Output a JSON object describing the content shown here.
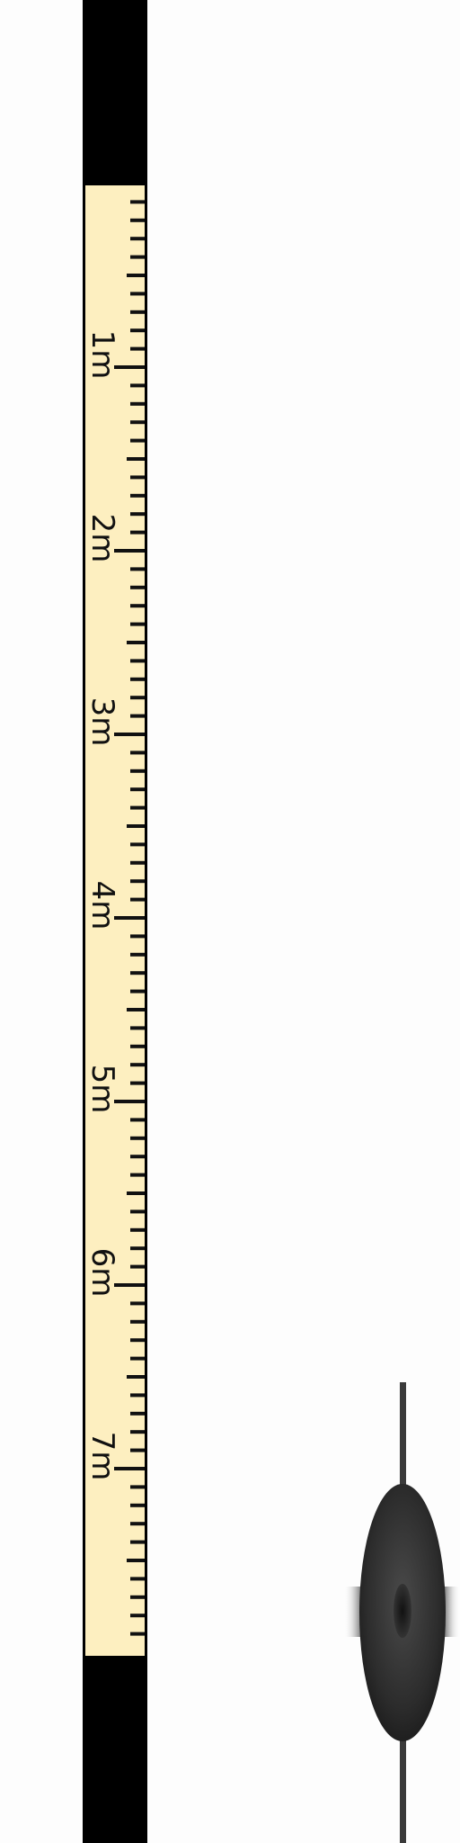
{
  "ruler": {
    "unit": "m",
    "ticks_per_meter": 10,
    "range_m": [
      -1,
      8
    ],
    "labels": [
      "1m",
      "2m",
      "3m",
      "4m",
      "5m",
      "6m",
      "7m"
    ],
    "tape_color": "#fdefc0",
    "track_color": "#000000"
  },
  "marker": {
    "level_m": 7.8,
    "icon": "spindle-marker-icon",
    "body_color": "#2a2a2a"
  }
}
